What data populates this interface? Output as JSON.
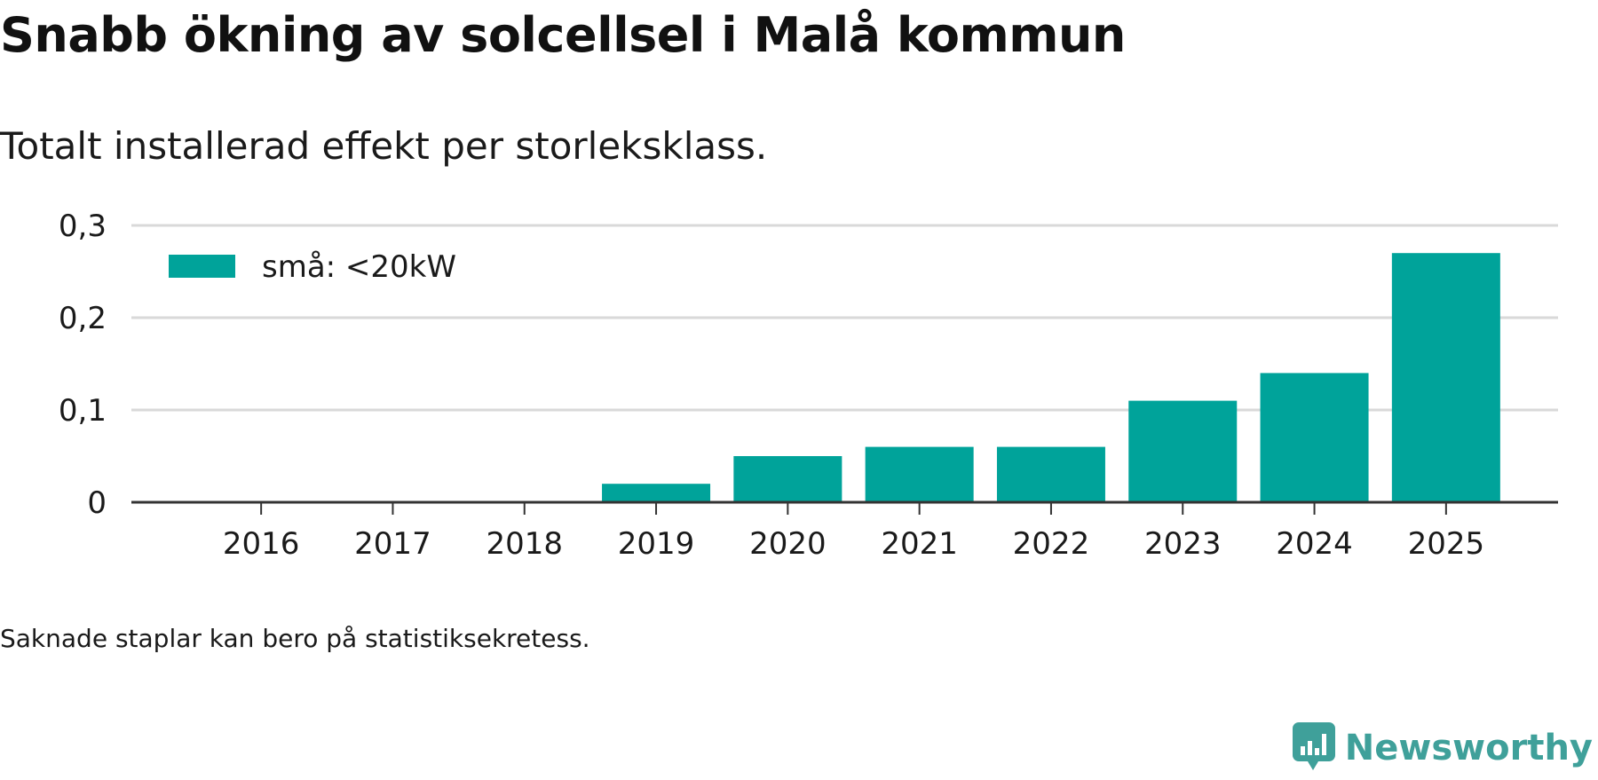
{
  "title": "Snabb ökning av solcellsel i Malå kommun",
  "subtitle": "Totalt installerad effekt per storleksklass.",
  "footnote": "Saknade staplar kan bero på statistiksekretess.",
  "brand": {
    "name": "Newsworthy",
    "icon": "newsworthy-logo-icon",
    "color": "#3fa09a"
  },
  "colors": {
    "bar": "#00a39a",
    "grid": "#d9d9d9",
    "axis": "#333333",
    "text": "#1a1a1a"
  },
  "chart_data": {
    "type": "bar",
    "title": "Snabb ökning av solcellsel i Malå kommun",
    "subtitle": "Totalt installerad effekt per storleksklass.",
    "xlabel": "",
    "ylabel": "",
    "categories": [
      "2016",
      "2017",
      "2018",
      "2019",
      "2020",
      "2021",
      "2022",
      "2023",
      "2024",
      "2025"
    ],
    "series": [
      {
        "name": "små: <20kW",
        "values": [
          0,
          0,
          0,
          0.02,
          0.05,
          0.06,
          0.06,
          0.11,
          0.14,
          0.27
        ]
      }
    ],
    "ylim": [
      0,
      0.3
    ],
    "yticks": [
      0,
      0.1,
      0.2,
      0.3
    ],
    "ytick_labels": [
      "0",
      "0,1",
      "0,2",
      "0,3"
    ],
    "grid": true,
    "legend_position": "top-left"
  }
}
